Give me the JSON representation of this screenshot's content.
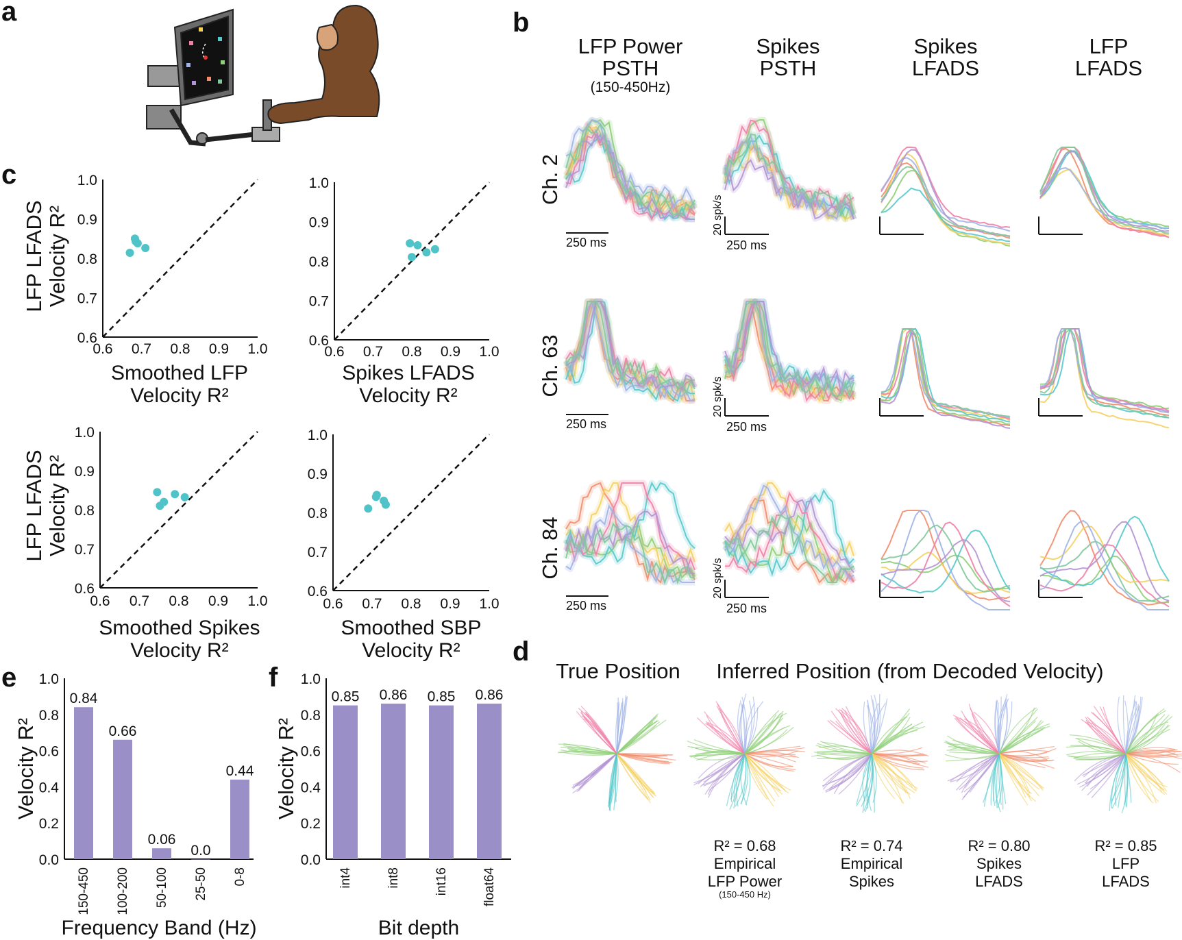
{
  "panel_letters": [
    "a",
    "b",
    "c",
    "d",
    "e",
    "f"
  ],
  "colors": {
    "dot": "#4fc3c8",
    "bar": "#9b8fc7",
    "series": [
      "#f28c6a",
      "#8ecf77",
      "#f5d060",
      "#55c8cc",
      "#f07fa8",
      "#9fb3e6",
      "#b294d4",
      "#7fc99b"
    ]
  },
  "panel_b": {
    "columns": [
      {
        "line1": "LFP Power",
        "line2": "PSTH",
        "sub": "(150-450Hz)"
      },
      {
        "line1": "Spikes",
        "line2": "PSTH",
        "sub": ""
      },
      {
        "line1": "Spikes",
        "line2": "LFADS",
        "sub": ""
      },
      {
        "line1": "LFP",
        "line2": "LFADS",
        "sub": ""
      }
    ],
    "rows": [
      "Ch. 2",
      "Ch. 63",
      "Ch. 84"
    ],
    "scale_time": "250 ms",
    "scale_rate": "20 spk/s"
  },
  "panel_c": {
    "ylabel": [
      "LFP LFADS",
      "Velocity R²"
    ],
    "ticks": [
      "0.6",
      "0.7",
      "0.8",
      "0.9",
      "1.0"
    ],
    "plots": [
      {
        "xlabel1": "Smoothed LFP",
        "xlabel2": "Velocity R²",
        "points": [
          [
            0.67,
            0.814
          ],
          [
            0.69,
            0.838
          ],
          [
            0.683,
            0.85
          ],
          [
            0.71,
            0.826
          ],
          [
            0.685,
            0.843
          ]
        ]
      },
      {
        "xlabel1": "Spikes LFADS",
        "xlabel2": "Velocity R²",
        "points": [
          [
            0.795,
            0.845
          ],
          [
            0.815,
            0.84
          ],
          [
            0.8,
            0.81
          ],
          [
            0.838,
            0.822
          ],
          [
            0.86,
            0.83
          ]
        ]
      },
      {
        "xlabel1": "Smoothed Spikes",
        "xlabel2": "Velocity R²",
        "points": [
          [
            0.745,
            0.845
          ],
          [
            0.762,
            0.82
          ],
          [
            0.752,
            0.81
          ],
          [
            0.79,
            0.84
          ],
          [
            0.815,
            0.832
          ]
        ]
      },
      {
        "xlabel1": "Smoothed SBP",
        "xlabel2": "Velocity R²",
        "points": [
          [
            0.69,
            0.81
          ],
          [
            0.71,
            0.84
          ],
          [
            0.712,
            0.845
          ],
          [
            0.73,
            0.83
          ],
          [
            0.735,
            0.82
          ]
        ]
      }
    ]
  },
  "panel_d": {
    "title_true": "True Position",
    "title_inferred": "Inferred Position (from Decoded Velocity)",
    "labels": [
      {
        "r2": "R² = 0.68",
        "l1": "Empirical",
        "l2": "LFP Power",
        "l3": "(150-450 Hz)"
      },
      {
        "r2": "R² = 0.74",
        "l1": "Empirical",
        "l2": "Spikes",
        "l3": ""
      },
      {
        "r2": "R² = 0.80",
        "l1": "Spikes",
        "l2": "LFADS",
        "l3": ""
      },
      {
        "r2": "R² = 0.85",
        "l1": "LFP",
        "l2": "LFADS",
        "l3": ""
      }
    ]
  },
  "chart_data": [
    {
      "type": "bar",
      "panel": "e",
      "title": "",
      "categories": [
        "150-450",
        "100-200",
        "50-100",
        "25-50",
        "0-8"
      ],
      "values": [
        0.84,
        0.66,
        0.06,
        0.0,
        0.44
      ],
      "value_labels": [
        "0.84",
        "0.66",
        "0.06",
        "0.0",
        "0.44"
      ],
      "xlabel": "Frequency Band (Hz)",
      "ylabel": "Velocity R²",
      "ylim": [
        0,
        1.0
      ],
      "yticks": [
        "0.0",
        "0.2",
        "0.4",
        "0.6",
        "0.8",
        "1.0"
      ]
    },
    {
      "type": "bar",
      "panel": "f",
      "title": "",
      "categories": [
        "int4",
        "int8",
        "int16",
        "float64"
      ],
      "values": [
        0.85,
        0.86,
        0.85,
        0.86
      ],
      "value_labels": [
        "0.85",
        "0.86",
        "0.85",
        "0.86"
      ],
      "xlabel": "Bit depth",
      "ylabel": "Velocity R²",
      "ylim": [
        0,
        1.0
      ],
      "yticks": [
        "0.0",
        "0.2",
        "0.4",
        "0.6",
        "0.8",
        "1.0"
      ]
    }
  ]
}
